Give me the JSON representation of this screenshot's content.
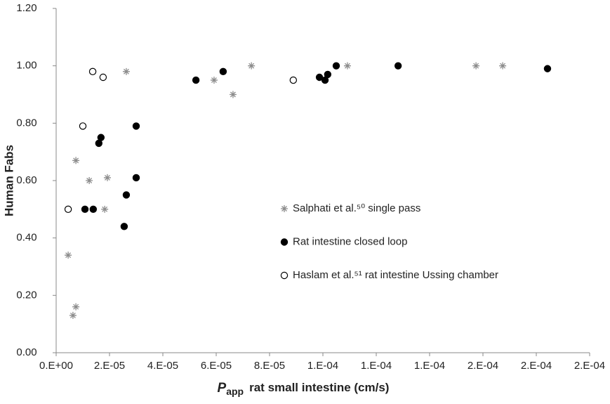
{
  "chart_data": {
    "type": "scatter",
    "ylabel": "Human Fabs",
    "xlabel": {
      "symbol": "P",
      "subscript": "app",
      "text": "rat small intestine (cm/s)"
    },
    "xlim": [
      0,
      0.0002
    ],
    "ylim": [
      0,
      1.2
    ],
    "xticks": [
      {
        "value": 0,
        "label": "0.E+00"
      },
      {
        "value": 2e-05,
        "label": "2.E-05"
      },
      {
        "value": 4e-05,
        "label": "4.E-05"
      },
      {
        "value": 6e-05,
        "label": "6.E-05"
      },
      {
        "value": 8e-05,
        "label": "8.E-05"
      },
      {
        "value": 0.0001,
        "label": "1.E-04"
      },
      {
        "value": 0.00012,
        "label": "1.E-04"
      },
      {
        "value": 0.00014,
        "label": "1.E-04"
      },
      {
        "value": 0.00016,
        "label": "2.E-04"
      },
      {
        "value": 0.00018,
        "label": "2.E-04"
      },
      {
        "value": 0.0002,
        "label": "2.E-04"
      }
    ],
    "yticks": [
      {
        "value": 0,
        "label": "0.00"
      },
      {
        "value": 0.2,
        "label": "0.20"
      },
      {
        "value": 0.4,
        "label": "0.40"
      },
      {
        "value": 0.6,
        "label": "0.60"
      },
      {
        "value": 0.8,
        "label": "0.80"
      },
      {
        "value": 1.0,
        "label": "1.00"
      },
      {
        "value": 1.2,
        "label": "1.20"
      }
    ],
    "grid": false,
    "series": [
      {
        "name": "Salphati et al.⁵⁰ single pass",
        "color": "#8c8c8c",
        "marker": "asterisk",
        "x": [
          4.5e-06,
          6.3e-06,
          7.4e-06,
          7.4e-06,
          1.24e-05,
          1.92e-05,
          1.82e-05,
          2.63e-05,
          5.92e-05,
          6.63e-05,
          7.32e-05,
          0.0001092,
          0.0001574,
          0.0001674
        ],
        "values": [
          0.34,
          0.13,
          0.16,
          0.67,
          0.6,
          0.61,
          0.5,
          0.98,
          0.95,
          0.9,
          1.0,
          1.0,
          1.0,
          1.0
        ]
      },
      {
        "name": "Rat intestine closed loop",
        "color": "#000000",
        "marker": "circle-filled",
        "x": [
          1.08e-05,
          1.39e-05,
          2.55e-05,
          2.63e-05,
          3e-05,
          3e-05,
          1.68e-05,
          1.6e-05,
          5.24e-05,
          6.26e-05,
          9.87e-05,
          0.0001008,
          0.0001018,
          0.000105,
          0.0001282,
          0.0001842
        ],
        "values": [
          0.5,
          0.5,
          0.44,
          0.55,
          0.61,
          0.79,
          0.75,
          0.73,
          0.95,
          0.98,
          0.96,
          0.95,
          0.97,
          1.0,
          1.0,
          0.99
        ]
      },
      {
        "name": "Haslam et al.⁵¹ rat intestine Ussing chamber",
        "color": "#000000",
        "marker": "circle-open",
        "x": [
          4.5e-06,
          1e-05,
          1.37e-05,
          1.76e-05,
          8.89e-05
        ],
        "values": [
          0.5,
          0.79,
          0.98,
          0.96,
          0.95
        ]
      }
    ]
  }
}
